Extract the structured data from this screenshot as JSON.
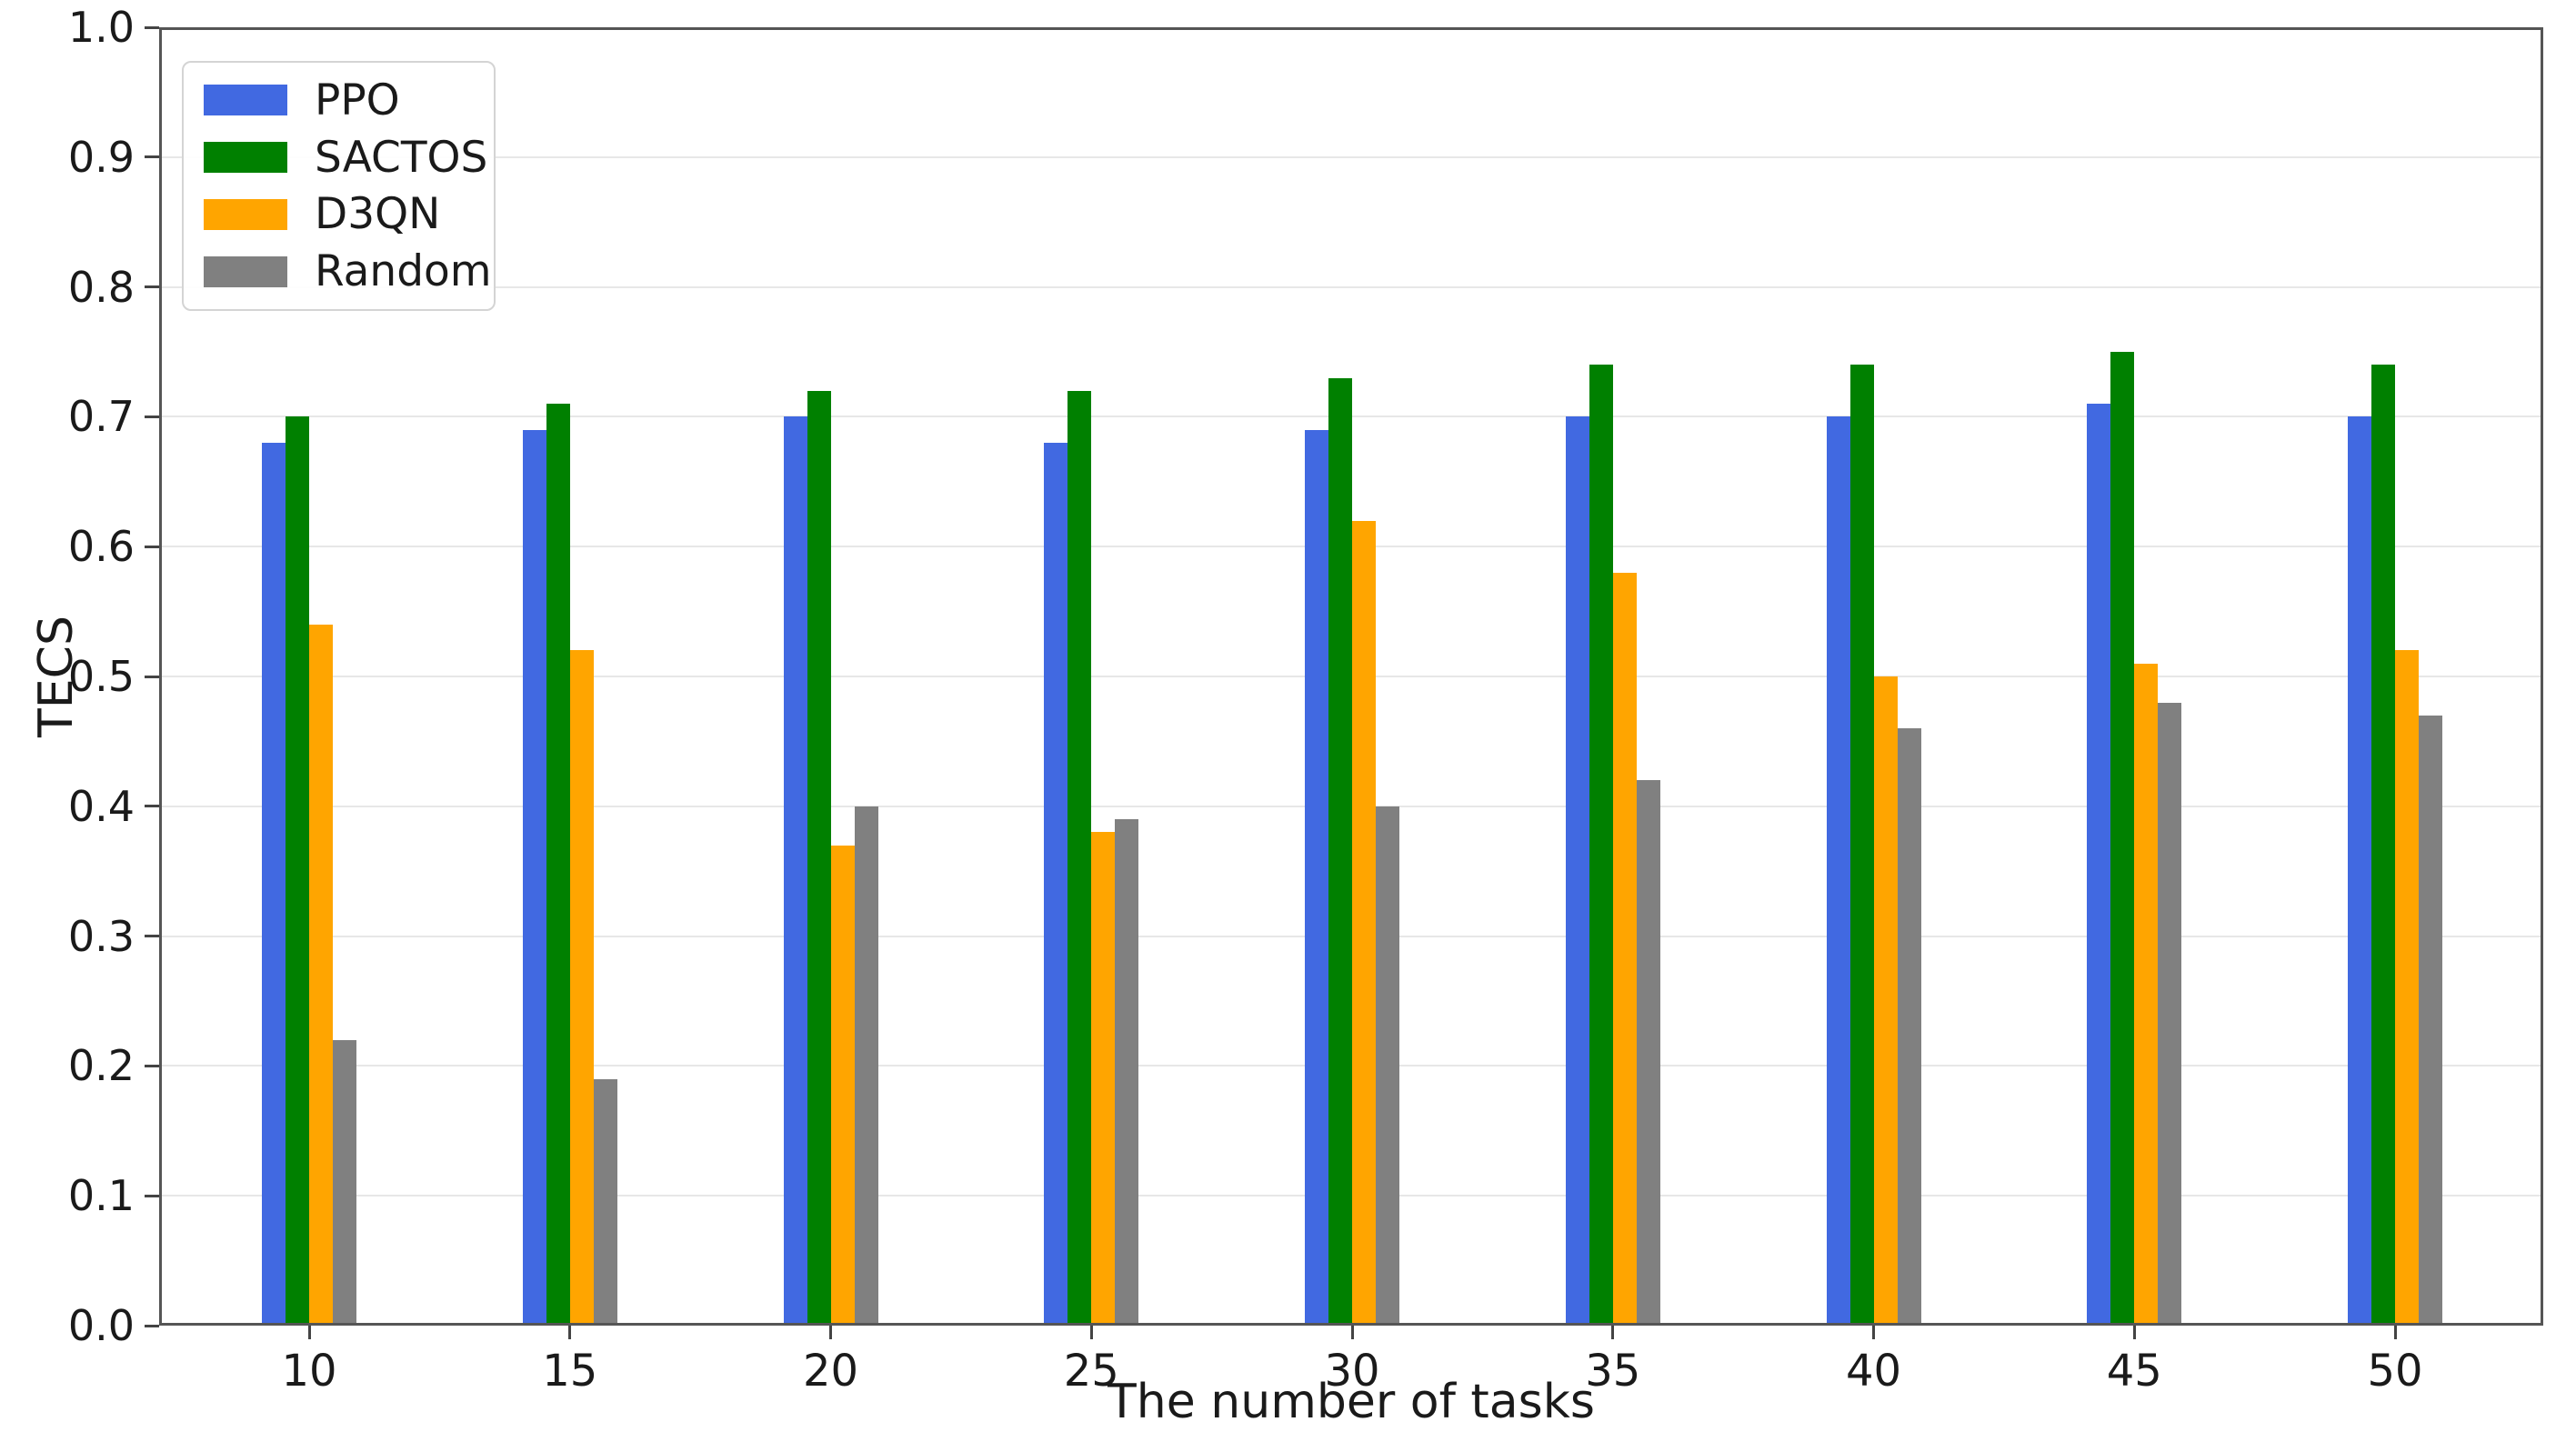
{
  "figure": {
    "xlabel": "The number of tasks",
    "ylabel": "TECS"
  },
  "legend": {
    "items": [
      "PPO",
      "SACTOS",
      "D3QN",
      "Random"
    ]
  },
  "colors": {
    "ppo_blue": "#4169E1",
    "sactos_green": "#008000",
    "d3qn_orange": "#FFA500",
    "random_gray": "#808080",
    "gridline": "#e7e7e7",
    "spine": "#555555"
  },
  "chart_data": {
    "type": "bar",
    "title": "",
    "xlabel": "The number of tasks",
    "ylabel": "TECS",
    "categories": [
      "10",
      "15",
      "20",
      "25",
      "30",
      "35",
      "40",
      "45",
      "50"
    ],
    "series": [
      {
        "name": "PPO",
        "color": "#4169E1",
        "values": [
          0.68,
          0.69,
          0.7,
          0.68,
          0.69,
          0.7,
          0.7,
          0.71,
          0.7
        ]
      },
      {
        "name": "SACTOS",
        "color": "#008000",
        "values": [
          0.7,
          0.71,
          0.72,
          0.72,
          0.73,
          0.74,
          0.74,
          0.75,
          0.74
        ]
      },
      {
        "name": "D3QN",
        "color": "#FFA500",
        "values": [
          0.54,
          0.52,
          0.37,
          0.38,
          0.62,
          0.58,
          0.5,
          0.51,
          0.52
        ]
      },
      {
        "name": "Random",
        "color": "#808080",
        "values": [
          0.22,
          0.19,
          0.4,
          0.39,
          0.4,
          0.42,
          0.46,
          0.48,
          0.47
        ]
      }
    ],
    "ylim": [
      0.0,
      1.0
    ],
    "yticks": [
      "0.0",
      "0.1",
      "0.2",
      "0.3",
      "0.4",
      "0.5",
      "0.6",
      "0.7",
      "0.8",
      "0.9",
      "1.0"
    ],
    "grid": true,
    "legend_position": "upper-left"
  }
}
